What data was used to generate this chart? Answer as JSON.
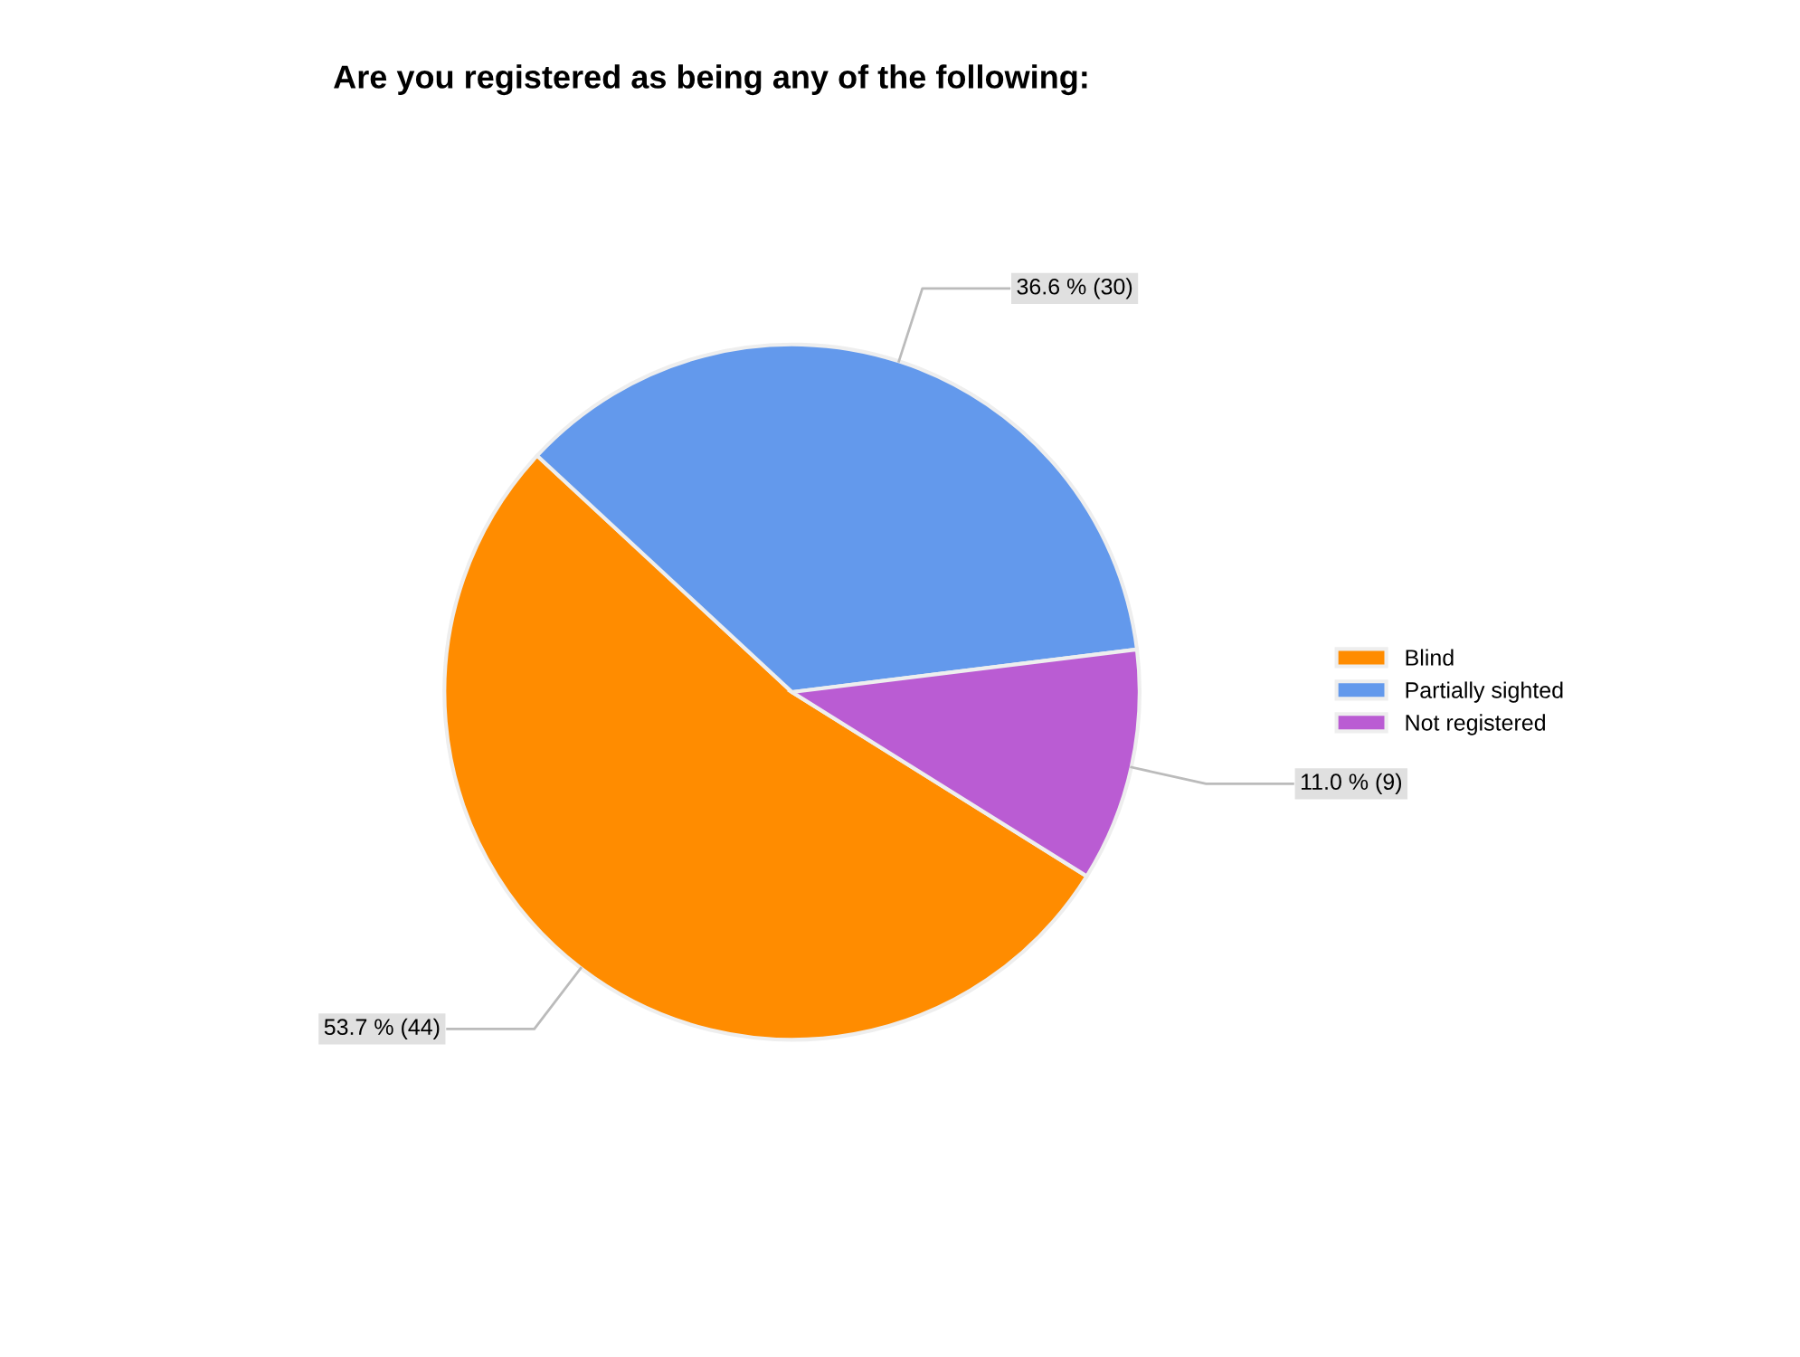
{
  "chart_data": {
    "type": "pie",
    "title": "Are you registered as being any of the following:",
    "categories": [
      "Blind",
      "Partially sighted",
      "Not registered"
    ],
    "values": [
      44,
      30,
      9
    ],
    "value_labels": [
      "53.7 % (44)",
      "36.6 % (30)",
      "11.0 % (9)"
    ],
    "colors": [
      "#ff8c00",
      "#6399ec",
      "#ba5cd3"
    ],
    "legend": "right"
  }
}
